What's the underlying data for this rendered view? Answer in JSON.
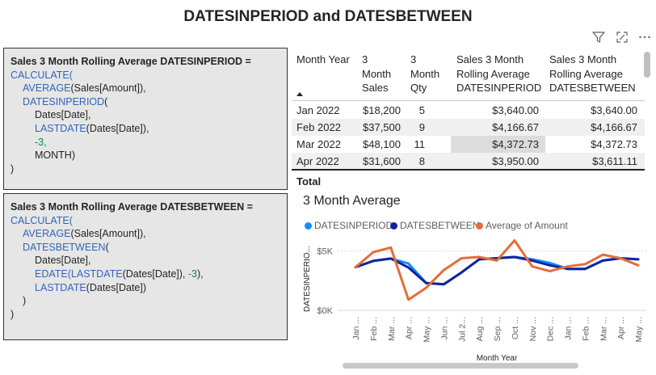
{
  "title": "DATESINPERIOD and DATESBETWEEN",
  "measure1": {
    "name": "Sales 3 Month Rolling Average DATESINPERIOD =",
    "fn_calculate": "CALCULATE(",
    "fn_average": "AVERAGE",
    "average_arg": "(Sales[Amount]),",
    "fn_period": "DATESINPERIOD",
    "paren_open": "(",
    "arg_dates": "Dates[Date],",
    "fn_lastdate": "LASTDATE",
    "lastdate_arg": "(Dates[Date]),",
    "arg_offset": "-3,",
    "arg_interval": "MONTH)",
    "close": ")"
  },
  "measure2": {
    "name": "Sales 3 Month Rolling Average DATESBETWEEN =",
    "fn_calculate": "CALCULATE(",
    "fn_average": "AVERAGE",
    "average_arg": "(Sales[Amount]),",
    "fn_between": "DATESBETWEEN",
    "paren_open": "(",
    "arg_dates": "Dates[Date],",
    "fn_edate": "EDATE",
    "edate_open": "(",
    "fn_lastdate": "LASTDATE",
    "edate_inner": "(Dates[Date]), ",
    "edate_offset": "-3",
    "edate_close": "),",
    "lastdate2_arg": "(Dates[Date])",
    "close_inner": ")",
    "close": ")"
  },
  "table": {
    "headers": [
      [
        "Month Year"
      ],
      [
        "3",
        "Month",
        "Sales"
      ],
      [
        "3",
        "Month",
        "Qty"
      ],
      [
        "Sales 3 Month",
        "Rolling Average",
        "DATESINPERIOD"
      ],
      [
        "Sales 3 Month",
        "Rolling Average",
        "DATESBETWEEN"
      ]
    ],
    "rows": [
      {
        "month": "Jan 2022",
        "sales": "$18,200",
        "qty": "5",
        "inperiod": "$3,640.00",
        "between": "$3,640.00"
      },
      {
        "month": "Feb 2022",
        "sales": "$37,500",
        "qty": "9",
        "inperiod": "$4,166.67",
        "between": "$4,166.67"
      },
      {
        "month": "Mar 2022",
        "sales": "$48,100",
        "qty": "11",
        "inperiod": "$4,372.73",
        "between": "$4,372.73"
      },
      {
        "month": "Apr 2022",
        "sales": "$31,600",
        "qty": "8",
        "inperiod": "$3,950.00",
        "between": "$3,611.11"
      }
    ],
    "total_label": "Total"
  },
  "toolbar": {
    "filter_icon": "filter-icon",
    "focus_icon": "focus-mode-icon",
    "more_icon": "more-options-icon"
  },
  "chart_data": {
    "type": "line",
    "title": "3 Month Average",
    "xlabel": "Month Year",
    "ylabel": "DATESINPERIO...",
    "x": [
      "Jan ...",
      "Feb ...",
      "Mar ...",
      "Apr ...",
      "May ...",
      "Jun ...",
      "Jul 2...",
      "Aug ...",
      "Sep ...",
      "Oct ...",
      "Nov ...",
      "Dec ...",
      "Jan ...",
      "Feb ...",
      "Mar ...",
      "Apr ...",
      "May ..."
    ],
    "yticks": [
      {
        "value": 0,
        "label": "$0K"
      },
      {
        "value": 5000,
        "label": "$5K"
      }
    ],
    "ylim": [
      0,
      6000
    ],
    "grid": true,
    "legend_position": "top-left",
    "series": [
      {
        "name": "DATESINPERIOD",
        "color": "#118dff",
        "values": [
          3640,
          4167,
          4373,
          3950,
          2300,
          2200,
          3200,
          4300,
          4400,
          4500,
          4300,
          4000,
          3500,
          3500,
          4200,
          4400,
          4300
        ]
      },
      {
        "name": "DATESBETWEEN",
        "color": "#12239e",
        "values": [
          3640,
          4167,
          4373,
          3611,
          2300,
          2200,
          3200,
          4300,
          4400,
          4500,
          4200,
          3800,
          3500,
          3500,
          4200,
          4400,
          4300
        ]
      },
      {
        "name": "Average of Amount",
        "color": "#e66c37",
        "values": [
          3640,
          4900,
          5300,
          900,
          1900,
          3400,
          4400,
          4500,
          4200,
          5900,
          3700,
          3300,
          3700,
          3900,
          4700,
          4400,
          3800
        ]
      }
    ]
  }
}
